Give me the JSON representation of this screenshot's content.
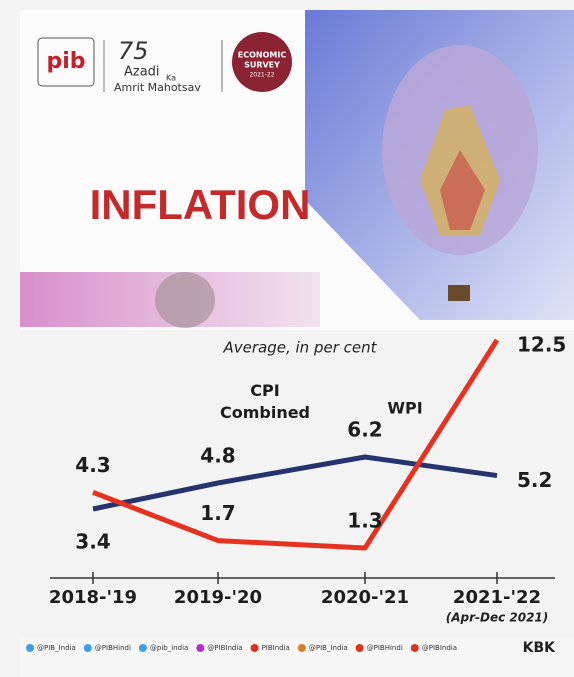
{
  "branding": {
    "logo": "pib",
    "jubilee_number": "75",
    "jubilee_line1": "Azadi",
    "jubilee_ka": "Ka",
    "jubilee_line2": "Amrit Mahotsav",
    "survey_line1": "ECONOMIC",
    "survey_line2": "SURVEY",
    "survey_line3": "2021-22"
  },
  "chart_data": {
    "type": "line",
    "title": "INFLATION",
    "subtitle": "Average, in per cent",
    "categories": [
      "2018-'19",
      "2019-'20",
      "2020-'21",
      "2021-'22"
    ],
    "category_notes": [
      null,
      null,
      null,
      "(Apr-Dec 2021)"
    ],
    "series": [
      {
        "name": "CPI Combined",
        "color": "#26336e",
        "values": [
          3.4,
          4.8,
          6.2,
          5.2
        ]
      },
      {
        "name": "WPI",
        "color": "#e6321f",
        "values": [
          4.3,
          1.7,
          1.3,
          12.5
        ]
      }
    ]
  },
  "footer": {
    "handles": [
      "@PIB_India",
      "@PIBHindi",
      "@pib_india",
      "@PIBIndia",
      "PIBIndia",
      "@PIB_India",
      "@PIBHindi",
      "@PIBIndia"
    ],
    "credit": "KBK"
  }
}
